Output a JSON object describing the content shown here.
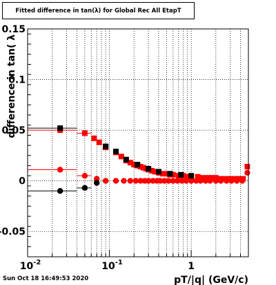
{
  "chart_data": {
    "type": "scatter",
    "title": "Fitted difference in tan(λ) for Global Rec All EtapT",
    "xlabel": "pT/|q| (GeV/c)",
    "ylabel": "difference in tan( λ",
    "xscale": "log",
    "xlim": [
      0.01,
      5.0
    ],
    "ylim": [
      -0.075,
      0.15
    ],
    "grid": true,
    "x_ticks": [
      {
        "value": 0.01,
        "base": "10",
        "exp": "-2"
      },
      {
        "value": 0.1,
        "base": "10",
        "exp": "-1"
      },
      {
        "value": 1,
        "base": "1",
        "exp": ""
      }
    ],
    "y_ticks": [
      {
        "value": 0.15,
        "label": "0.15"
      },
      {
        "value": 0.1,
        "label": "0.1"
      },
      {
        "value": 0.05,
        "label": "0.05"
      },
      {
        "value": 0,
        "label": "0"
      },
      {
        "value": -0.05,
        "label": "-0.05"
      }
    ],
    "series": [
      {
        "marker": "square",
        "color": "#ff0000",
        "points": [
          {
            "x": 0.025,
            "y": 0.05,
            "xerr": [
              0.01,
              0.04
            ]
          },
          {
            "x": 0.05,
            "y": 0.047,
            "xerr": [
              0.04,
              0.06
            ]
          },
          {
            "x": 0.065,
            "y": 0.042
          },
          {
            "x": 0.075,
            "y": 0.038
          },
          {
            "x": 0.09,
            "y": 0.033
          },
          {
            "x": 0.12,
            "y": 0.028
          },
          {
            "x": 0.14,
            "y": 0.024
          },
          {
            "x": 0.16,
            "y": 0.02
          },
          {
            "x": 0.18,
            "y": 0.018
          },
          {
            "x": 0.2,
            "y": 0.016
          },
          {
            "x": 0.22,
            "y": 0.015
          },
          {
            "x": 0.24,
            "y": 0.014
          },
          {
            "x": 0.26,
            "y": 0.013
          },
          {
            "x": 0.28,
            "y": 0.012
          },
          {
            "x": 0.3,
            "y": 0.011
          },
          {
            "x": 0.33,
            "y": 0.01
          },
          {
            "x": 0.36,
            "y": 0.009
          },
          {
            "x": 0.4,
            "y": 0.008
          },
          {
            "x": 0.45,
            "y": 0.007
          },
          {
            "x": 0.5,
            "y": 0.007
          },
          {
            "x": 0.55,
            "y": 0.006
          },
          {
            "x": 0.6,
            "y": 0.006
          },
          {
            "x": 0.7,
            "y": 0.005
          },
          {
            "x": 0.8,
            "y": 0.005
          },
          {
            "x": 0.9,
            "y": 0.004
          },
          {
            "x": 1.0,
            "y": 0.004
          },
          {
            "x": 1.2,
            "y": 0.004
          },
          {
            "x": 1.4,
            "y": 0.003
          },
          {
            "x": 1.6,
            "y": 0.003
          },
          {
            "x": 1.8,
            "y": 0.003
          },
          {
            "x": 2.0,
            "y": 0.003
          },
          {
            "x": 2.3,
            "y": 0.002
          },
          {
            "x": 2.6,
            "y": 0.002
          },
          {
            "x": 3.0,
            "y": 0.002
          },
          {
            "x": 3.4,
            "y": 0.002
          },
          {
            "x": 3.8,
            "y": 0.002
          },
          {
            "x": 4.3,
            "y": 0.002
          },
          {
            "x": 4.85,
            "y": 0.014
          }
        ]
      },
      {
        "marker": "circle",
        "color": "#ff0000",
        "points": [
          {
            "x": 0.025,
            "y": 0.011,
            "xerr": [
              0.01,
              0.04
            ]
          },
          {
            "x": 0.05,
            "y": 0.005,
            "xerr": [
              0.04,
              0.06
            ]
          },
          {
            "x": 0.07,
            "y": 0.002
          },
          {
            "x": 0.09,
            "y": 0.0
          },
          {
            "x": 0.12,
            "y": 0.0
          },
          {
            "x": 0.15,
            "y": 0.0
          },
          {
            "x": 0.18,
            "y": 0.0
          },
          {
            "x": 0.21,
            "y": 0.0
          },
          {
            "x": 0.24,
            "y": 0.0
          },
          {
            "x": 0.27,
            "y": 0.0
          },
          {
            "x": 0.3,
            "y": 0.0
          },
          {
            "x": 0.34,
            "y": 0.0
          },
          {
            "x": 0.38,
            "y": 0.0
          },
          {
            "x": 0.42,
            "y": 0.0
          },
          {
            "x": 0.47,
            "y": 0.0
          },
          {
            "x": 0.53,
            "y": 0.0
          },
          {
            "x": 0.6,
            "y": 0.0
          },
          {
            "x": 0.68,
            "y": 0.0
          },
          {
            "x": 0.77,
            "y": 0.0
          },
          {
            "x": 0.87,
            "y": 0.0
          },
          {
            "x": 1.0,
            "y": 0.0
          },
          {
            "x": 1.15,
            "y": 0.0
          },
          {
            "x": 1.3,
            "y": 0.0
          },
          {
            "x": 1.5,
            "y": 0.0
          },
          {
            "x": 1.7,
            "y": 0.0
          },
          {
            "x": 2.0,
            "y": 0.0
          },
          {
            "x": 2.3,
            "y": 0.0
          },
          {
            "x": 2.7,
            "y": 0.0
          },
          {
            "x": 3.1,
            "y": 0.0
          },
          {
            "x": 3.6,
            "y": 0.0
          },
          {
            "x": 4.2,
            "y": 0.0
          },
          {
            "x": 4.85,
            "y": 0.008
          }
        ]
      },
      {
        "marker": "square",
        "color": "#000000",
        "points": [
          {
            "x": 0.025,
            "y": 0.052,
            "xerr": [
              0.01,
              0.04
            ]
          },
          {
            "x": 0.09,
            "y": 0.034
          },
          {
            "x": 0.12,
            "y": 0.029
          },
          {
            "x": 0.16,
            "y": 0.021
          },
          {
            "x": 0.22,
            "y": 0.016
          },
          {
            "x": 0.3,
            "y": 0.012
          },
          {
            "x": 0.4,
            "y": 0.009
          },
          {
            "x": 0.55,
            "y": 0.007
          },
          {
            "x": 0.75,
            "y": 0.006
          },
          {
            "x": 1.0,
            "y": 0.005
          }
        ]
      },
      {
        "marker": "circle",
        "color": "#000000",
        "points": [
          {
            "x": 0.025,
            "y": -0.01,
            "xerr": [
              0.01,
              0.04
            ]
          },
          {
            "x": 0.05,
            "y": -0.007,
            "xerr": [
              0.04,
              0.06
            ]
          },
          {
            "x": 0.07,
            "y": -0.002
          }
        ]
      }
    ],
    "footer": "Sun Oct 18 16:49:53 2020"
  }
}
